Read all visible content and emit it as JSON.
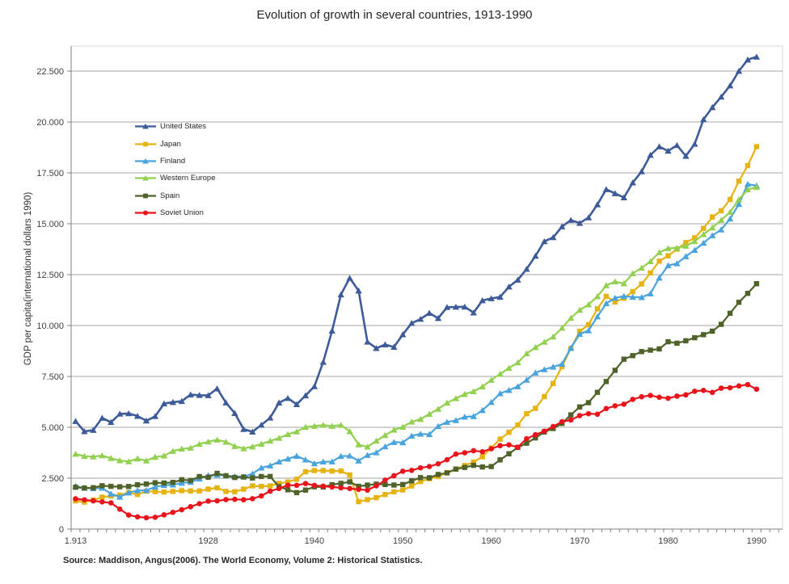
{
  "title": "Evolution of growth in several countries, 1913-1990",
  "source_note": "Source: Maddison, Angus(2006). The World Economy, Volume 2: Historical Statistics.",
  "y_axis": {
    "title": "GDP per capita(international dollars 1990)",
    "tick_labels": [
      "0",
      "2.500",
      "5.000",
      "7.500",
      "10.000",
      "12.500",
      "15.000",
      "17.500",
      "20.000",
      "22.500"
    ],
    "max": 22500,
    "step": 2500
  },
  "x_axis": {
    "ticks": [
      {
        "label": "1.913",
        "year": 1913
      },
      {
        "label": "1928",
        "year": 1928
      },
      {
        "label": "1940",
        "year": 1940
      },
      {
        "label": "1950",
        "year": 1950
      },
      {
        "label": "1960",
        "year": 1960
      },
      {
        "label": "1970",
        "year": 1970
      },
      {
        "label": "1980",
        "year": 1980
      },
      {
        "label": "1990",
        "year": 1990
      }
    ]
  },
  "colors": {
    "gridline": "#A6A6A6",
    "axis": "#808080",
    "plot_border": "#D9D9D9"
  },
  "chart_data": {
    "type": "line",
    "title": "Evolution of growth in several countries, 1913-1990",
    "xlabel": "",
    "ylabel": "GDP per capita(international dollars 1990)",
    "ylim": [
      0,
      22500
    ],
    "y_max": 22500,
    "grid": "horizontal",
    "legend_position": "upper-left-inside",
    "x": [
      1913,
      1914,
      1915,
      1916,
      1917,
      1918,
      1919,
      1920,
      1921,
      1922,
      1923,
      1924,
      1925,
      1926,
      1927,
      1928,
      1929,
      1930,
      1931,
      1932,
      1933,
      1934,
      1935,
      1936,
      1937,
      1938,
      1939,
      1940,
      1941,
      1942,
      1943,
      1944,
      1945,
      1946,
      1947,
      1948,
      1949,
      1950,
      1951,
      1952,
      1953,
      1954,
      1955,
      1956,
      1957,
      1958,
      1959,
      1960,
      1961,
      1962,
      1963,
      1964,
      1965,
      1966,
      1967,
      1968,
      1969,
      1970,
      1971,
      1972,
      1973,
      1974,
      1975,
      1976,
      1977,
      1978,
      1979,
      1980,
      1981,
      1982,
      1983,
      1984,
      1985,
      1986,
      1987,
      1988,
      1989,
      1990
    ],
    "series": [
      {
        "name": "United States",
        "color": "#3E5B99",
        "marker": "triangle",
        "line_width": 2.6,
        "values": [
          5301,
          4799,
          4864,
          5459,
          5248,
          5659,
          5680,
          5552,
          5323,
          5540,
          6164,
          6233,
          6282,
          6602,
          6576,
          6569,
          6899,
          6213,
          5691,
          4908,
          4777,
          5114,
          5467,
          6204,
          6430,
          6126,
          6561,
          7010,
          8206,
          9741,
          11518,
          12333,
          11709,
          9197,
          8886,
          9065,
          8944,
          9561,
          10116,
          10316,
          10613,
          10359,
          10897,
          10914,
          10920,
          10631,
          11230,
          11328,
          11402,
          11905,
          12242,
          12773,
          13419,
          14134,
          14330,
          14863,
          15179,
          15030,
          15304,
          15944,
          16689,
          16491,
          16284,
          17018,
          17567,
          18373,
          18789,
          18577,
          18856,
          18325,
          18920,
          20123,
          20717,
          21236,
          21788,
          22499,
          23059,
          23201
        ]
      },
      {
        "name": "Japan",
        "color": "#E5B313",
        "marker": "square",
        "line_width": 2.2,
        "values": [
          1387,
          1327,
          1430,
          1569,
          1628,
          1668,
          1795,
          1696,
          1860,
          1841,
          1817,
          1848,
          1885,
          1872,
          1873,
          1963,
          2026,
          1850,
          1837,
          1962,
          2122,
          2098,
          2120,
          2244,
          2315,
          2449,
          2816,
          2874,
          2873,
          2852,
          2855,
          2659,
          1346,
          1444,
          1541,
          1698,
          1829,
          1921,
          2117,
          2336,
          2474,
          2582,
          2771,
          2948,
          3123,
          3290,
          3554,
          3986,
          4421,
          4752,
          5117,
          5668,
          5934,
          6506,
          7152,
          7983,
          8874,
          9714,
          10041,
          10824,
          11434,
          11158,
          11344,
          11669,
          12043,
          12585,
          13163,
          13428,
          13754,
          14075,
          14307,
          14773,
          15331,
          15637,
          16190,
          17093,
          17856,
          18789
        ]
      },
      {
        "name": "Finland",
        "color": "#49A3DC",
        "marker": "triangle",
        "line_width": 2.2,
        "values": [
          2111,
          2018,
          1997,
          2018,
          1733,
          1580,
          1789,
          1897,
          1906,
          2070,
          2155,
          2179,
          2262,
          2310,
          2473,
          2635,
          2666,
          2622,
          2582,
          2570,
          2717,
          3013,
          3117,
          3309,
          3451,
          3589,
          3408,
          3220,
          3309,
          3313,
          3580,
          3601,
          3355,
          3632,
          3759,
          4055,
          4268,
          4253,
          4580,
          4674,
          4654,
          5055,
          5260,
          5342,
          5511,
          5539,
          5836,
          6230,
          6662,
          6823,
          7006,
          7326,
          7681,
          7842,
          7969,
          8109,
          8892,
          9577,
          9754,
          10437,
          11085,
          11354,
          11441,
          11401,
          11383,
          11568,
          12342,
          12949,
          13048,
          13396,
          13706,
          14052,
          14425,
          14710,
          15243,
          15962,
          16946,
          16866
        ]
      },
      {
        "name": "Western Europe",
        "color": "#92D04F",
        "marker": "triangle",
        "line_width": 2.2,
        "values": [
          3688,
          3580,
          3560,
          3610,
          3480,
          3370,
          3320,
          3460,
          3360,
          3540,
          3600,
          3830,
          3940,
          3990,
          4180,
          4290,
          4387,
          4280,
          4070,
          3960,
          4050,
          4180,
          4330,
          4470,
          4660,
          4790,
          5010,
          5060,
          5110,
          5060,
          5110,
          4800,
          4150,
          4040,
          4330,
          4610,
          4870,
          5018,
          5270,
          5400,
          5650,
          5900,
          6200,
          6420,
          6630,
          6760,
          7000,
          7321,
          7620,
          7910,
          8180,
          8620,
          8930,
          9190,
          9450,
          9880,
          10370,
          10760,
          11030,
          11430,
          11970,
          12160,
          12060,
          12560,
          12830,
          13150,
          13590,
          13790,
          13810,
          13910,
          14140,
          14480,
          14810,
          15180,
          15570,
          16190,
          16680,
          16797
        ]
      },
      {
        "name": "Spain",
        "color": "#4E622A",
        "marker": "square",
        "line_width": 2.2,
        "values": [
          2056,
          2015,
          2033,
          2130,
          2100,
          2078,
          2092,
          2177,
          2212,
          2274,
          2263,
          2294,
          2424,
          2387,
          2580,
          2546,
          2739,
          2620,
          2536,
          2560,
          2509,
          2582,
          2583,
          2085,
          1931,
          1790,
          1915,
          2080,
          2070,
          2182,
          2245,
          2317,
          2102,
          2160,
          2206,
          2189,
          2163,
          2189,
          2369,
          2528,
          2521,
          2683,
          2762,
          2947,
          3029,
          3130,
          3050,
          3072,
          3400,
          3700,
          4010,
          4220,
          4480,
          4770,
          4940,
          5190,
          5610,
          6000,
          6210,
          6720,
          7250,
          7800,
          8346,
          8520,
          8720,
          8790,
          8850,
          9203,
          9130,
          9250,
          9400,
          9550,
          9722,
          10060,
          10600,
          11140,
          11580,
          12055
        ]
      },
      {
        "name": "Soviet Union",
        "color": "#E8131B",
        "marker": "circle",
        "line_width": 2.2,
        "values": [
          1488,
          1438,
          1388,
          1338,
          1288,
          980,
          690,
          600,
          560,
          580,
          700,
          820,
          950,
          1100,
          1250,
          1370,
          1386,
          1448,
          1462,
          1439,
          1493,
          1630,
          1864,
          1991,
          2156,
          2150,
          2237,
          2144,
          2105,
          2066,
          2028,
          1990,
          1951,
          1913,
          2126,
          2402,
          2623,
          2841,
          2886,
          3007,
          3075,
          3206,
          3404,
          3684,
          3747,
          3850,
          3800,
          3945,
          4098,
          4140,
          4020,
          4439,
          4634,
          4811,
          5039,
          5274,
          5358,
          5575,
          5669,
          5643,
          5921,
          6055,
          6136,
          6371,
          6500,
          6565,
          6476,
          6427,
          6532,
          6593,
          6769,
          6813,
          6715,
          6924,
          6943,
          7032,
          7098,
          6871
        ]
      }
    ]
  }
}
